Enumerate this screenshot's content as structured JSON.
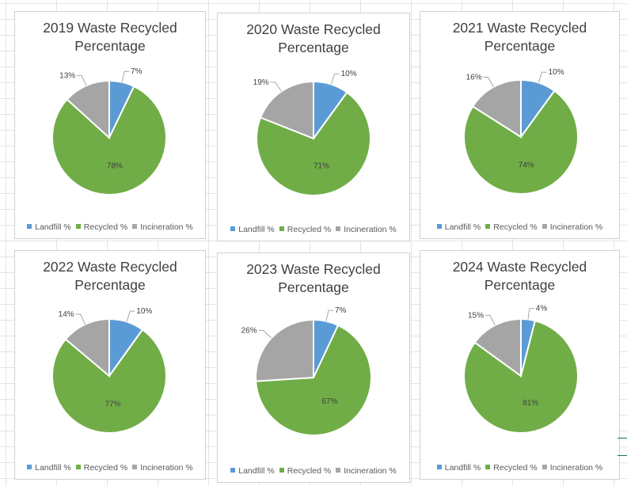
{
  "legend_labels": [
    "Landfill %",
    "Recycled %",
    "Incineration %"
  ],
  "colors": {
    "landfill": "#5b9bd5",
    "recycled": "#70ad47",
    "incineration": "#a5a5a5"
  },
  "chart_data": [
    {
      "type": "pie",
      "title_line1": "2019 Waste Recycled",
      "title_line2": "Percentage",
      "categories": [
        "Landfill %",
        "Recycled %",
        "Incineration %"
      ],
      "values": [
        7,
        78,
        13
      ],
      "labels": [
        "7%",
        "78%",
        "13%"
      ]
    },
    {
      "type": "pie",
      "title_line1": "2020 Waste Recycled",
      "title_line2": "Percentage",
      "categories": [
        "Landfill %",
        "Recycled %",
        "Incineration %"
      ],
      "values": [
        10,
        71,
        19
      ],
      "labels": [
        "10%",
        "71%",
        "19%"
      ]
    },
    {
      "type": "pie",
      "title_line1": "2021 Waste Recycled",
      "title_line2": "Percentage",
      "categories": [
        "Landfill %",
        "Recycled %",
        "Incineration %"
      ],
      "values": [
        10,
        74,
        16
      ],
      "labels": [
        "10%",
        "74%",
        "16%"
      ]
    },
    {
      "type": "pie",
      "title_line1": "2022 Waste Recycled",
      "title_line2": "Percentage",
      "categories": [
        "Landfill %",
        "Recycled %",
        "Incineration %"
      ],
      "values": [
        10,
        77,
        14
      ],
      "labels": [
        "10%",
        "77%",
        "14%"
      ]
    },
    {
      "type": "pie",
      "title_line1": "2023 Waste Recycled",
      "title_line2": "Percentage",
      "categories": [
        "Landfill %",
        "Recycled %",
        "Incineration %"
      ],
      "values": [
        7,
        67,
        26
      ],
      "labels": [
        "7%",
        "67%",
        "26%"
      ]
    },
    {
      "type": "pie",
      "title_line1": "2024 Waste Recycled",
      "title_line2": "Percentage",
      "categories": [
        "Landfill %",
        "Recycled %",
        "Incineration %"
      ],
      "values": [
        4,
        81,
        15
      ],
      "labels": [
        "4%",
        "81%",
        "15%"
      ]
    }
  ]
}
